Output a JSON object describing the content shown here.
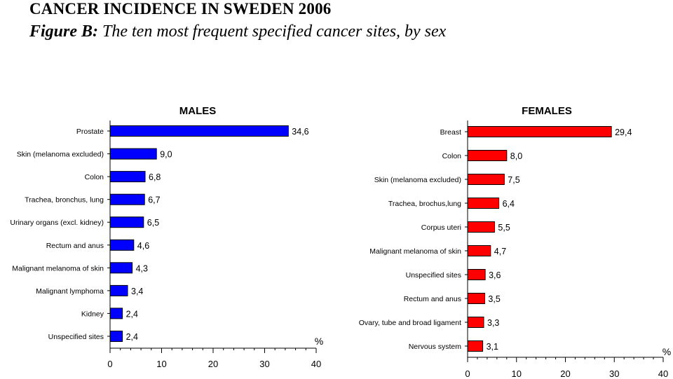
{
  "header": {
    "title": "CANCER INCIDENCE IN SWEDEN 2006",
    "figure_label": "Figure B:",
    "figure_caption": "The ten most frequent specified cancer sites, by sex"
  },
  "chart_data": [
    {
      "type": "bar",
      "orientation": "horizontal",
      "title": "MALES",
      "unit_label": "%",
      "xlim": [
        0,
        40
      ],
      "x_ticks": [
        "0",
        "10",
        "20",
        "30",
        "40"
      ],
      "color": "#0000ff",
      "categories": [
        "Prostate",
        "Skin (melanoma excluded)",
        "Colon",
        "Trachea, bronchus, lung",
        "Urinary organs (excl. kidney)",
        "Rectum and anus",
        "Malignant melanoma of skin",
        "Malignant lymphoma",
        "Kidney",
        "Unspecified sites"
      ],
      "values": [
        34.6,
        9.0,
        6.8,
        6.7,
        6.5,
        4.6,
        4.3,
        3.4,
        2.4,
        2.4
      ],
      "value_labels": [
        "34,6",
        "9,0",
        "6,8",
        "6,7",
        "6,5",
        "4,6",
        "4,3",
        "3,4",
        "2,4",
        "2,4"
      ]
    },
    {
      "type": "bar",
      "orientation": "horizontal",
      "title": "FEMALES",
      "unit_label": "%",
      "xlim": [
        0,
        40
      ],
      "x_ticks": [
        "0",
        "10",
        "20",
        "30",
        "40"
      ],
      "color": "#ff0000",
      "categories": [
        "Breast",
        "Colon",
        "Skin (melanoma excluded)",
        "Trachea, brochus,lung",
        "Corpus uteri",
        "Malignant melanoma of skin",
        "Unspecified sites",
        "Rectum and anus",
        "Ovary, tube and broad ligament",
        "Nervous system"
      ],
      "values": [
        29.4,
        8.0,
        7.5,
        6.4,
        5.5,
        4.7,
        3.6,
        3.5,
        3.3,
        3.1
      ],
      "value_labels": [
        "29,4",
        "8,0",
        "7,5",
        "6,4",
        "5,5",
        "4,7",
        "3,6",
        "3,5",
        "3,3",
        "3,1"
      ]
    }
  ]
}
